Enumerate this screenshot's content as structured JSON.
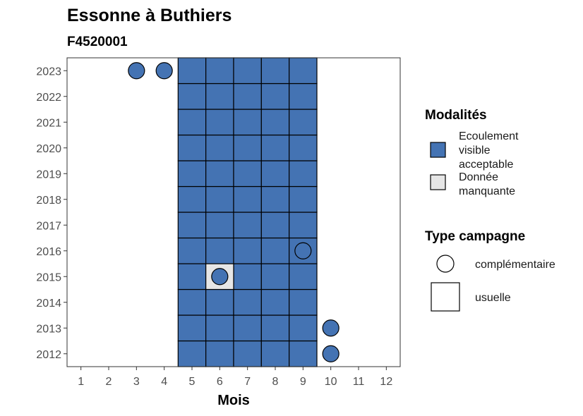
{
  "chart_data": {
    "type": "heatmap",
    "title": "Essonne à Buthiers",
    "subtitle": "F4520001",
    "xlabel": "Mois",
    "ylabel": "",
    "x_ticks": [
      1,
      2,
      3,
      4,
      5,
      6,
      7,
      8,
      9,
      10,
      11,
      12
    ],
    "y_ticks": [
      2012,
      2013,
      2014,
      2015,
      2016,
      2017,
      2018,
      2019,
      2020,
      2021,
      2022,
      2023
    ],
    "xlim": [
      0.5,
      12.5
    ],
    "ylim": [
      2011.5,
      2023.5
    ],
    "grid": false,
    "legend_position": "right",
    "colors": {
      "ecoulement_visible_acceptable": "#4473b3",
      "donnee_manquante": "#e6e6e6"
    },
    "cells": [
      {
        "year": 2012,
        "months": [
          5,
          6,
          7,
          8,
          9
        ],
        "modalite": "ecoulement_visible_acceptable",
        "type": "usuelle"
      },
      {
        "year": 2013,
        "months": [
          5,
          6,
          7,
          8,
          9
        ],
        "modalite": "ecoulement_visible_acceptable",
        "type": "usuelle"
      },
      {
        "year": 2014,
        "months": [
          5,
          6,
          7,
          8,
          9
        ],
        "modalite": "ecoulement_visible_acceptable",
        "type": "usuelle"
      },
      {
        "year": 2015,
        "months": [
          5,
          7,
          8,
          9
        ],
        "modalite": "ecoulement_visible_acceptable",
        "type": "usuelle"
      },
      {
        "year": 2015,
        "months": [
          6
        ],
        "modalite": "donnee_manquante",
        "type": "usuelle"
      },
      {
        "year": 2016,
        "months": [
          5,
          6,
          7,
          8,
          9
        ],
        "modalite": "ecoulement_visible_acceptable",
        "type": "usuelle"
      },
      {
        "year": 2017,
        "months": [
          5,
          6,
          7,
          8,
          9
        ],
        "modalite": "ecoulement_visible_acceptable",
        "type": "usuelle"
      },
      {
        "year": 2018,
        "months": [
          5,
          6,
          7,
          8,
          9
        ],
        "modalite": "ecoulement_visible_acceptable",
        "type": "usuelle"
      },
      {
        "year": 2019,
        "months": [
          5,
          6,
          7,
          8,
          9
        ],
        "modalite": "ecoulement_visible_acceptable",
        "type": "usuelle"
      },
      {
        "year": 2020,
        "months": [
          5,
          6,
          7,
          8,
          9
        ],
        "modalite": "ecoulement_visible_acceptable",
        "type": "usuelle"
      },
      {
        "year": 2021,
        "months": [
          5,
          6,
          7,
          8,
          9
        ],
        "modalite": "ecoulement_visible_acceptable",
        "type": "usuelle"
      },
      {
        "year": 2022,
        "months": [
          5,
          6,
          7,
          8,
          9
        ],
        "modalite": "ecoulement_visible_acceptable",
        "type": "usuelle"
      },
      {
        "year": 2023,
        "months": [
          5,
          6,
          7,
          8,
          9
        ],
        "modalite": "ecoulement_visible_acceptable",
        "type": "usuelle"
      }
    ],
    "points": [
      {
        "year": 2023,
        "month": 3,
        "modalite": "ecoulement_visible_acceptable",
        "type": "complementaire"
      },
      {
        "year": 2023,
        "month": 4,
        "modalite": "ecoulement_visible_acceptable",
        "type": "complementaire"
      },
      {
        "year": 2016,
        "month": 9,
        "modalite": "ecoulement_visible_acceptable",
        "type": "complementaire"
      },
      {
        "year": 2015,
        "month": 6,
        "modalite": "ecoulement_visible_acceptable",
        "type": "complementaire"
      },
      {
        "year": 2013,
        "month": 10,
        "modalite": "ecoulement_visible_acceptable",
        "type": "complementaire"
      },
      {
        "year": 2012,
        "month": 10,
        "modalite": "ecoulement_visible_acceptable",
        "type": "complementaire"
      }
    ],
    "legend": {
      "modalites_title": "Modalités",
      "modalites": [
        {
          "key": "ecoulement_visible_acceptable",
          "lines": [
            "Ecoulement",
            "visible",
            "acceptable"
          ]
        },
        {
          "key": "donnee_manquante",
          "lines": [
            "Donnée",
            "manquante"
          ]
        }
      ],
      "type_title": "Type campagne",
      "types": [
        {
          "key": "complementaire",
          "label": "complémentaire"
        },
        {
          "key": "usuelle",
          "label": "usuelle"
        }
      ]
    }
  }
}
